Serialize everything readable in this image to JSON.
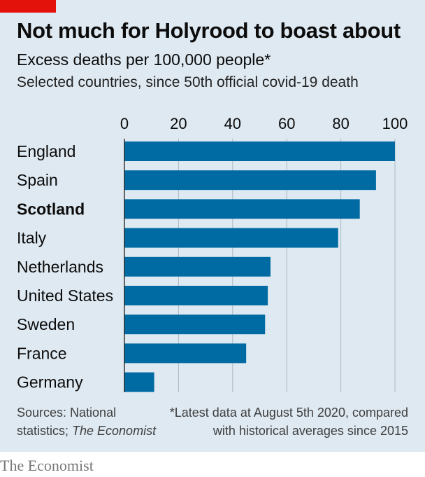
{
  "header": {
    "title": "Not much for Holyrood to boast about",
    "subtitle": "Excess deaths per 100,000 people*",
    "note": "Selected countries, since 50th official covid-19 death"
  },
  "footer": {
    "sources_line1": "Sources: National",
    "sources_line2_prefix": "statistics; ",
    "sources_line2_italic": "The Economist",
    "footnote_line1": "*Latest data at August 5th 2020, compared",
    "footnote_line2": "with historical averages since 2015",
    "brand": "The Economist"
  },
  "colors": {
    "bar": "#006ba2",
    "panel_background": "#dfe9f1",
    "accent_tag": "#e3120b",
    "gridline": "#a9b9c6"
  },
  "chart_data": {
    "type": "bar",
    "orientation": "horizontal",
    "categories": [
      "England",
      "Spain",
      "Scotland",
      "Italy",
      "Netherlands",
      "United States",
      "Sweden",
      "France",
      "Germany"
    ],
    "highlighted_category": "Scotland",
    "values": [
      100,
      93,
      87,
      79,
      54,
      53,
      52,
      45,
      11
    ],
    "xlim": [
      0,
      100
    ],
    "xticks": [
      0,
      20,
      40,
      60,
      80,
      100
    ],
    "axis_position": "top",
    "grid": true,
    "legend": "none"
  }
}
